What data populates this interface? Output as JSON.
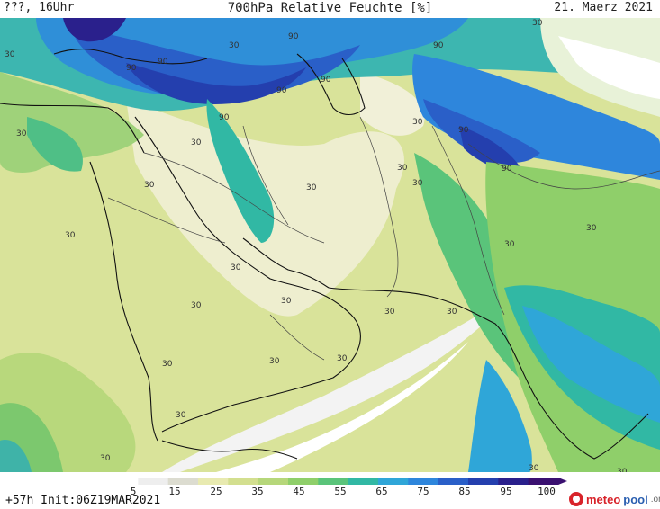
{
  "header": {
    "left_label": "???, 16Uhr",
    "title": "700hPa Relative Feuchte [%]",
    "date": "21. Maerz 2021"
  },
  "footer": {
    "run_info": "+57h Init:06Z19MAR2021"
  },
  "colorbar": {
    "ticks": [
      "5",
      "15",
      "25",
      "35",
      "45",
      "55",
      "65",
      "75",
      "85",
      "95",
      "100"
    ],
    "colors": [
      "#ffffff",
      "#eeeeee",
      "#dcdcd0",
      "#e8eab0",
      "#d3df8f",
      "#b6d77a",
      "#8fcf6a",
      "#5ac47a",
      "#31b8a4",
      "#2fa6d8",
      "#2e86dc",
      "#2a5fc8",
      "#243fae",
      "#2a208c",
      "#3a1070"
    ]
  },
  "map": {
    "contour_labels": [
      "90",
      "30"
    ]
  },
  "logo": {
    "meteo": "meteo",
    "pool": "pool",
    "org": ".org"
  }
}
